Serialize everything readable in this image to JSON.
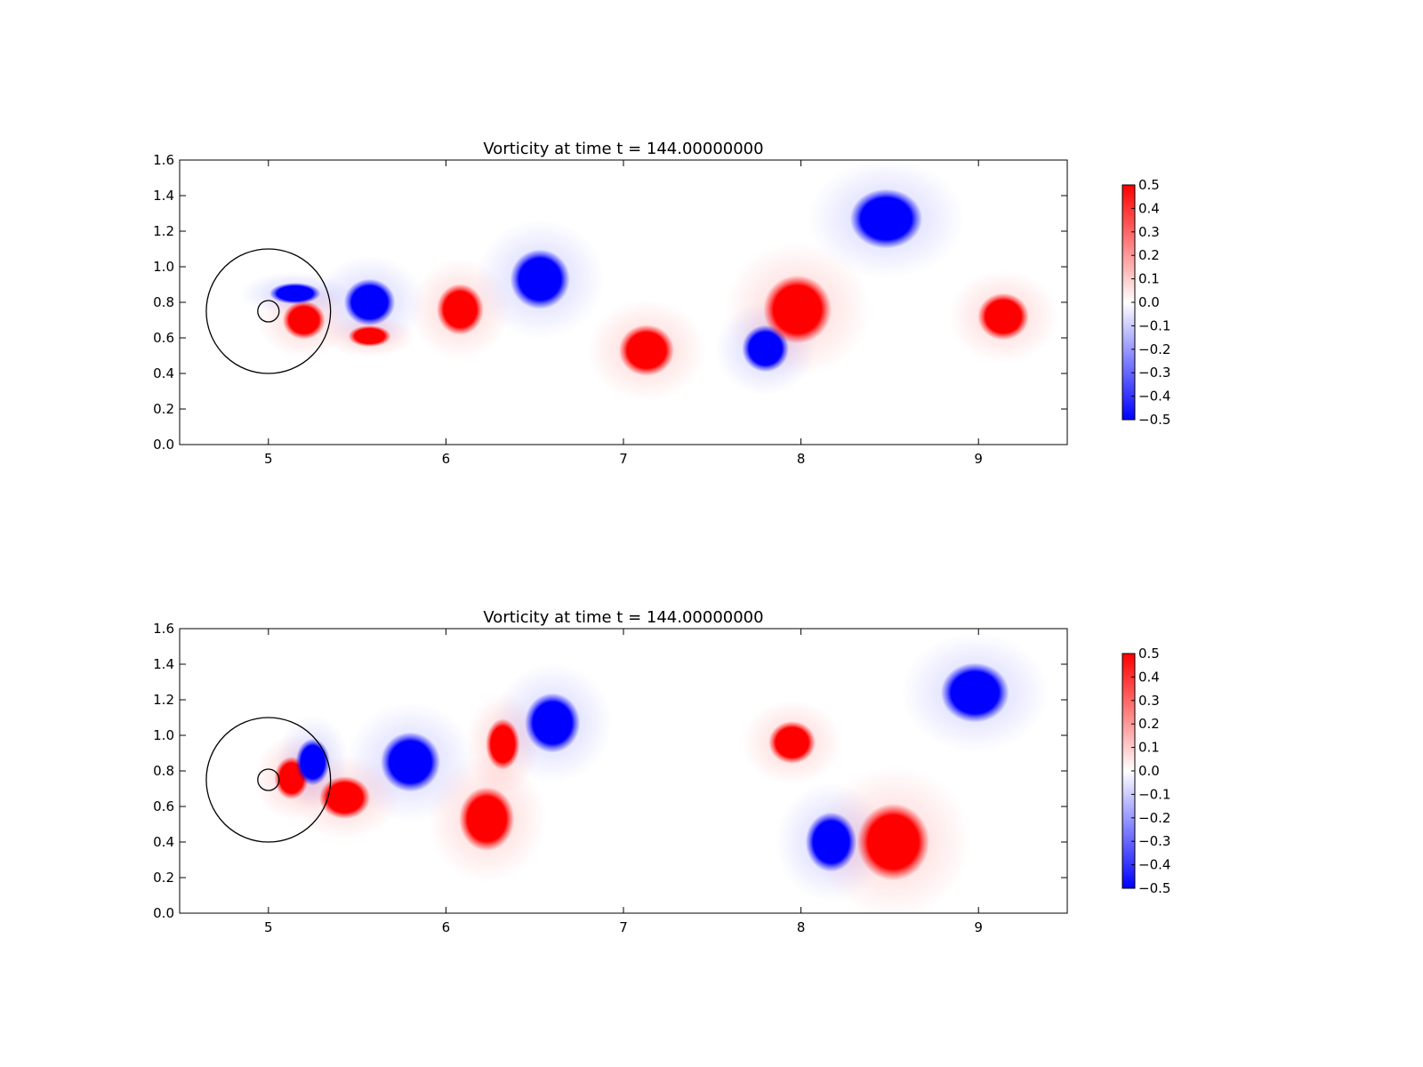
{
  "chart_data": [
    {
      "type": "heatmap",
      "title": "Vorticity at time t =   144.00000000",
      "xlim": [
        4.5,
        9.5
      ],
      "ylim": [
        0.0,
        1.6
      ],
      "xticks": [
        "5",
        "6",
        "7",
        "8",
        "9"
      ],
      "yticks": [
        "0.0",
        "0.2",
        "0.4",
        "0.6",
        "0.8",
        "1.0",
        "1.2",
        "1.4",
        "1.6"
      ],
      "colorbar": {
        "vmin": -0.5,
        "vmax": 0.5,
        "ticks": [
          "0.5",
          "0.4",
          "0.3",
          "0.2",
          "0.1",
          "0.0",
          "−0.1",
          "−0.2",
          "−0.3",
          "−0.4",
          "−0.5"
        ],
        "colors": {
          "positive": "#ff0000",
          "zero": "#ffffff",
          "negative": "#0000ff"
        }
      },
      "circles": [
        {
          "cx": 5.0,
          "cy": 0.75,
          "r": 0.35
        },
        {
          "cx": 5.0,
          "cy": 0.75,
          "r": 0.06
        }
      ],
      "vortices": [
        {
          "x": 5.2,
          "y": 0.7,
          "rx": 0.1,
          "ry": 0.09,
          "value": 0.5
        },
        {
          "x": 5.15,
          "y": 0.85,
          "rx": 0.12,
          "ry": 0.05,
          "value": -0.5
        },
        {
          "x": 5.57,
          "y": 0.8,
          "rx": 0.12,
          "ry": 0.11,
          "value": -0.5
        },
        {
          "x": 5.57,
          "y": 0.61,
          "rx": 0.1,
          "ry": 0.05,
          "value": 0.5
        },
        {
          "x": 6.08,
          "y": 0.76,
          "rx": 0.11,
          "ry": 0.12,
          "value": 0.5
        },
        {
          "x": 6.53,
          "y": 0.93,
          "rx": 0.14,
          "ry": 0.14,
          "value": -0.5
        },
        {
          "x": 7.13,
          "y": 0.53,
          "rx": 0.13,
          "ry": 0.12,
          "value": 0.5
        },
        {
          "x": 7.8,
          "y": 0.54,
          "rx": 0.11,
          "ry": 0.11,
          "value": -0.5
        },
        {
          "x": 7.98,
          "y": 0.76,
          "rx": 0.16,
          "ry": 0.16,
          "value": 0.5
        },
        {
          "x": 8.48,
          "y": 1.27,
          "rx": 0.17,
          "ry": 0.14,
          "value": -0.5
        },
        {
          "x": 9.14,
          "y": 0.72,
          "rx": 0.12,
          "ry": 0.11,
          "value": 0.5
        }
      ]
    },
    {
      "type": "heatmap",
      "title": "Vorticity at time t =   144.00000000",
      "xlim": [
        4.5,
        9.5
      ],
      "ylim": [
        0.0,
        1.6
      ],
      "xticks": [
        "5",
        "6",
        "7",
        "8",
        "9"
      ],
      "yticks": [
        "0.0",
        "0.2",
        "0.4",
        "0.6",
        "0.8",
        "1.0",
        "1.2",
        "1.4",
        "1.6"
      ],
      "colorbar": {
        "vmin": -0.5,
        "vmax": 0.5,
        "ticks": [
          "0.5",
          "0.4",
          "0.3",
          "0.2",
          "0.1",
          "0.0",
          "−0.1",
          "−0.2",
          "−0.3",
          "−0.4",
          "−0.5"
        ],
        "colors": {
          "positive": "#ff0000",
          "zero": "#ffffff",
          "negative": "#0000ff"
        }
      },
      "circles": [
        {
          "cx": 5.0,
          "cy": 0.75,
          "r": 0.35
        },
        {
          "cx": 5.0,
          "cy": 0.75,
          "r": 0.06
        }
      ],
      "vortices": [
        {
          "x": 5.13,
          "y": 0.76,
          "rx": 0.08,
          "ry": 0.1,
          "value": 0.5
        },
        {
          "x": 5.25,
          "y": 0.85,
          "rx": 0.08,
          "ry": 0.11,
          "value": -0.5
        },
        {
          "x": 5.43,
          "y": 0.65,
          "rx": 0.12,
          "ry": 0.1,
          "value": 0.5
        },
        {
          "x": 5.8,
          "y": 0.85,
          "rx": 0.14,
          "ry": 0.14,
          "value": -0.5
        },
        {
          "x": 6.23,
          "y": 0.53,
          "rx": 0.13,
          "ry": 0.15,
          "value": 0.5
        },
        {
          "x": 6.32,
          "y": 0.95,
          "rx": 0.08,
          "ry": 0.12,
          "value": 0.5
        },
        {
          "x": 6.6,
          "y": 1.07,
          "rx": 0.13,
          "ry": 0.14,
          "value": -0.5
        },
        {
          "x": 7.95,
          "y": 0.96,
          "rx": 0.11,
          "ry": 0.1,
          "value": 0.5
        },
        {
          "x": 8.17,
          "y": 0.4,
          "rx": 0.12,
          "ry": 0.14,
          "value": -0.5
        },
        {
          "x": 8.52,
          "y": 0.4,
          "rx": 0.17,
          "ry": 0.18,
          "value": 0.5
        },
        {
          "x": 8.98,
          "y": 1.24,
          "rx": 0.16,
          "ry": 0.14,
          "value": -0.5
        }
      ]
    }
  ]
}
